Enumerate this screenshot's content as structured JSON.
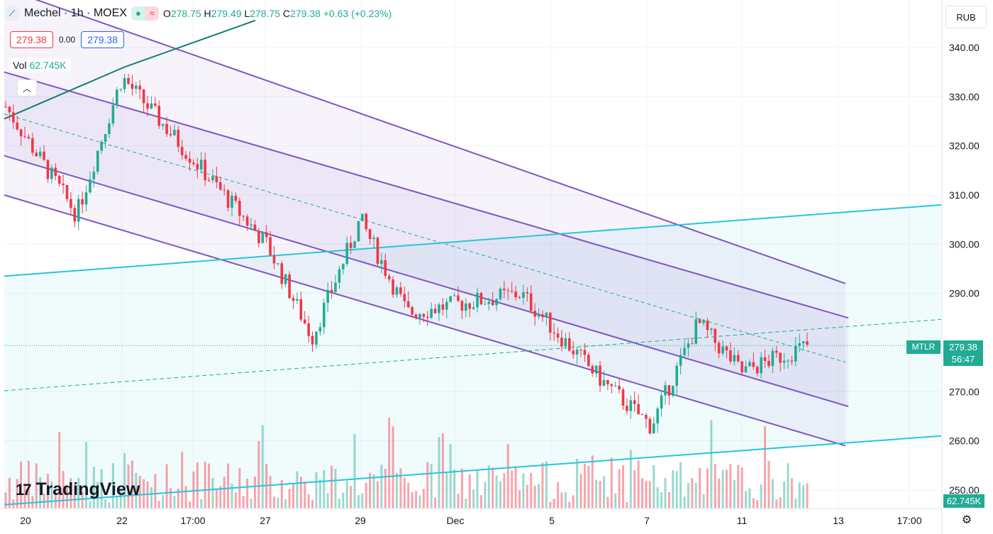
{
  "header": {
    "symbol_title": "Mechel · 1h · MOEX",
    "open_label": "O",
    "open": "278.75",
    "high_label": "H",
    "high": "279.49",
    "low_label": "L",
    "low": "278.75",
    "close_label": "C",
    "close": "279.38",
    "change": "+0.63 (+0.23%)",
    "icon": "mechel-logo-icon"
  },
  "trade": {
    "sell_price": "279.38",
    "spread": "0.00",
    "buy_price": "279.38"
  },
  "volume_legend": {
    "label": "Vol",
    "value": "62.745K"
  },
  "currency": "RUB",
  "last_price": {
    "symbol": "MTLR",
    "price": "279.38",
    "countdown": "56:47"
  },
  "volume_tag": "62.745K",
  "branding": {
    "name": "TradingView"
  },
  "colors": {
    "up": "#22ab94",
    "down": "#f23645",
    "channel": "#7e57c2",
    "trend": "#26c6da",
    "background": "#ffffff"
  },
  "chart_data": {
    "type": "candlestick",
    "ylim": [
      246,
      345
    ],
    "y_ticks": [
      "340.00",
      "330.00",
      "320.00",
      "310.00",
      "300.00",
      "290.00",
      "270.00",
      "260.00",
      "250.00"
    ],
    "x_ticks": [
      "20",
      "22",
      "17:00",
      "27",
      "29",
      "Dec",
      "5",
      "7",
      "11",
      "13",
      "17:00"
    ],
    "last_price": 279.38,
    "key_points": [
      {
        "date": "Nov 20",
        "price": 328
      },
      {
        "date": "Nov 21",
        "price": 306
      },
      {
        "date": "Nov 22",
        "price": 334
      },
      {
        "date": "Nov 27",
        "price": 300
      },
      {
        "date": "Nov 28",
        "price": 281
      },
      {
        "date": "Nov 29",
        "price": 305
      },
      {
        "date": "Dec 2",
        "price": 286
      },
      {
        "date": "Dec 4",
        "price": 290
      },
      {
        "date": "Dec 6",
        "price": 272
      },
      {
        "date": "Dec 7",
        "price": 263
      },
      {
        "date": "Dec 9",
        "price": 284
      },
      {
        "date": "Dec 11",
        "price": 274
      },
      {
        "date": "Dec 12",
        "price": 279.38
      }
    ],
    "channel": {
      "upper_start": 335,
      "upper_end": 285,
      "lower_start": 318,
      "lower_end": 267,
      "outer_upper_start": 352,
      "outer_upper_end": 292,
      "outer_lower_start": 310,
      "outer_lower_end": 259
    },
    "trend_lines": {
      "upper_start": 293.5,
      "upper_end": 308,
      "lower_start": 247,
      "lower_end": 261
    },
    "volume": {
      "last": "62.745K",
      "max_label": "62.745K"
    }
  }
}
